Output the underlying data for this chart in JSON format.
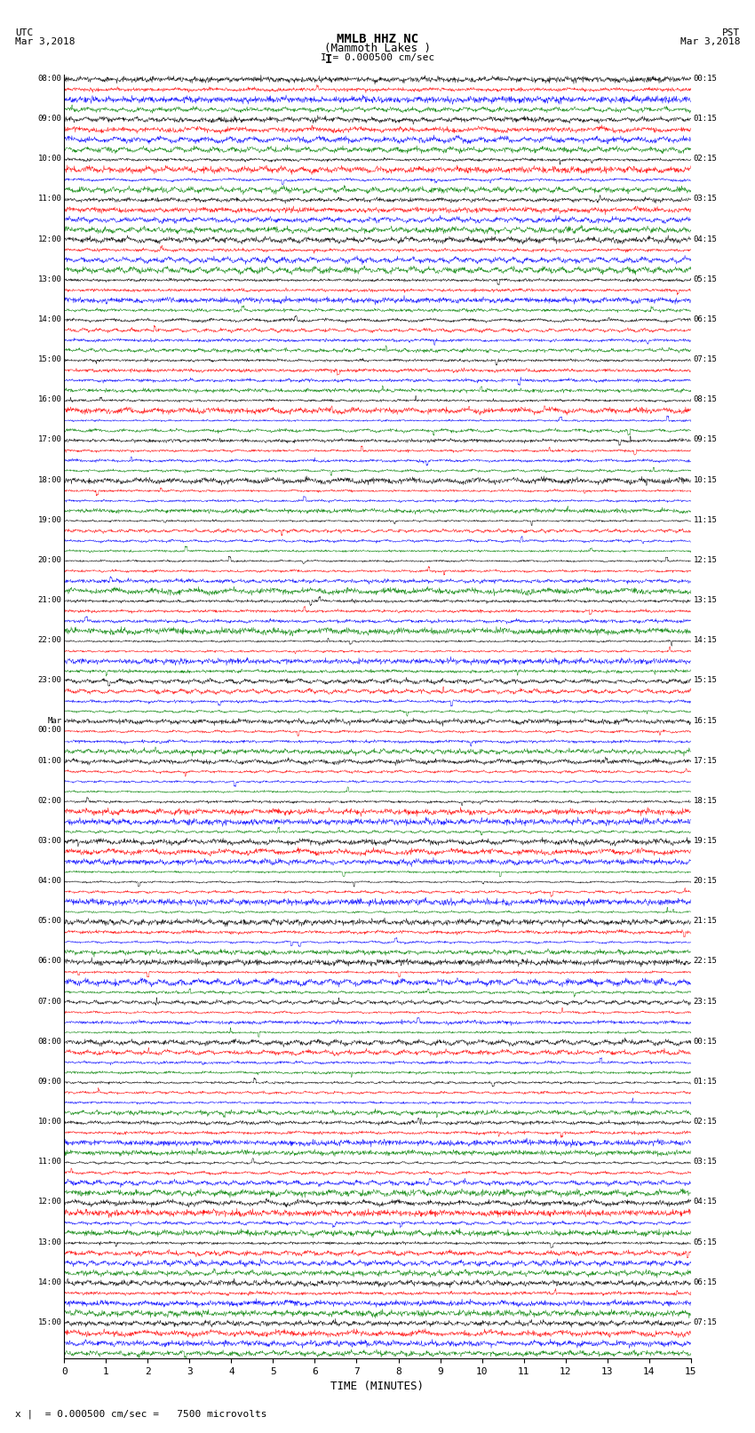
{
  "title_line1": "MMLB HHZ NC",
  "title_line2": "(Mammoth Lakes )",
  "title_line3": "I = 0.000500 cm/sec",
  "left_header_1": "UTC",
  "left_header_2": "Mar 3,2018",
  "right_header_1": "PST",
  "right_header_2": "Mar 3,2018",
  "xlabel": "TIME (MINUTES)",
  "footer": "x |  = 0.000500 cm/sec =   7500 microvolts",
  "fig_width": 8.5,
  "fig_height": 16.13,
  "background_color": "#ffffff",
  "trace_colors": [
    "black",
    "red",
    "blue",
    "green"
  ],
  "n_hours": 32,
  "n_per_hour": 4,
  "x_min": 0,
  "x_max": 15,
  "x_ticks": [
    0,
    1,
    2,
    3,
    4,
    5,
    6,
    7,
    8,
    9,
    10,
    11,
    12,
    13,
    14,
    15
  ],
  "left_times_utc": [
    "08:00",
    "09:00",
    "10:00",
    "11:00",
    "12:00",
    "13:00",
    "14:00",
    "15:00",
    "16:00",
    "17:00",
    "18:00",
    "19:00",
    "20:00",
    "21:00",
    "22:00",
    "23:00",
    "Mar\n00:00",
    "01:00",
    "02:00",
    "03:00",
    "04:00",
    "05:00",
    "06:00",
    "07:00",
    "08:00",
    "09:00",
    "10:00",
    "11:00",
    "12:00",
    "13:00",
    "14:00",
    "15:00"
  ],
  "right_times_pst": [
    "00:15",
    "01:15",
    "02:15",
    "03:15",
    "04:15",
    "05:15",
    "06:15",
    "07:15",
    "08:15",
    "09:15",
    "10:15",
    "11:15",
    "12:15",
    "13:15",
    "14:15",
    "15:15",
    "16:15",
    "17:15",
    "18:15",
    "19:15",
    "20:15",
    "21:15",
    "22:15",
    "23:15",
    "00:15",
    "01:15",
    "02:15",
    "03:15",
    "04:15",
    "05:15",
    "06:15",
    "07:15"
  ]
}
